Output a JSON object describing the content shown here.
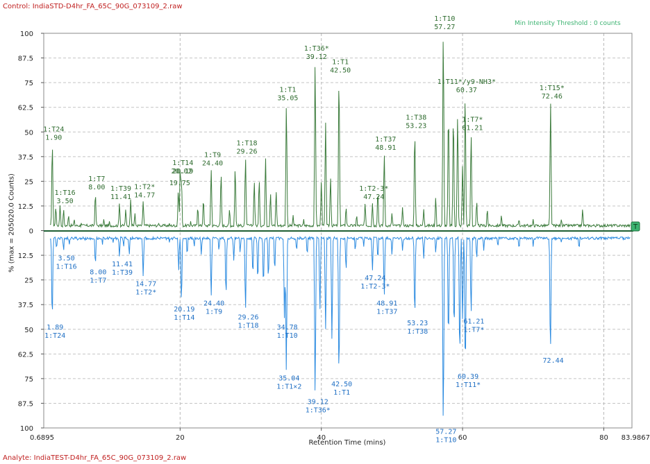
{
  "header": {
    "control_label": "Control: IndiaSTD-D4hr_FA_65C_90G_073109_2.raw",
    "analyte_label": "Analyte: IndiaTEST-D4hr_FA_65C_90G_073109_2.raw",
    "threshold_text": "Min Intensity Threshold : 0 counts",
    "marker_label": "T"
  },
  "colors": {
    "control_trace": "#3a7a3a",
    "control_text": "#2e6b2e",
    "analyte_trace": "#2a8ae0",
    "analyte_text": "#1f6fc4",
    "file_label": "#c02020",
    "threshold": "#3cb371",
    "marker": "#3cb371"
  },
  "chart_data": {
    "type": "line",
    "title": "",
    "xlabel": "Retention Time (mins)",
    "ylabel": "% (max = 205020.0 Counts)",
    "xlim": [
      0.6895,
      83.9867
    ],
    "x_tick_labels": [
      "0.6895",
      "20",
      "40",
      "60",
      "80",
      "83.9867"
    ],
    "x_ticks": [
      20,
      40,
      60,
      80
    ],
    "y_tick_labels": [
      "100",
      "87.5",
      "75",
      "62.5",
      "50",
      "37.5",
      "25",
      "12.5",
      "0",
      "12.5",
      "25",
      "37.5",
      "50",
      "62.5",
      "75",
      "87.5",
      "100"
    ],
    "ylim_top": [
      0,
      100
    ],
    "ylim_bottom": [
      0,
      100
    ],
    "grid": true,
    "series": [
      {
        "name": "Control",
        "orientation": "up",
        "baseline": 2,
        "peaks": [
          [
            1.9,
            44
          ],
          [
            2.4,
            12
          ],
          [
            3.0,
            13
          ],
          [
            3.5,
            11
          ],
          [
            4.2,
            8
          ],
          [
            5.0,
            6
          ],
          [
            6.0,
            4
          ],
          [
            8.0,
            19
          ],
          [
            9.2,
            6
          ],
          [
            10.0,
            5
          ],
          [
            11.41,
            14
          ],
          [
            12.3,
            11
          ],
          [
            13.0,
            16
          ],
          [
            13.6,
            9
          ],
          [
            14.77,
            15
          ],
          [
            17.0,
            4
          ],
          [
            18.5,
            4
          ],
          [
            19.75,
            21
          ],
          [
            20.02,
            34
          ],
          [
            20.19,
            27
          ],
          [
            21.5,
            5
          ],
          [
            22.5,
            12
          ],
          [
            23.3,
            16
          ],
          [
            24.4,
            31
          ],
          [
            25.8,
            29
          ],
          [
            27.0,
            11
          ],
          [
            27.8,
            32
          ],
          [
            29.26,
            37
          ],
          [
            30.5,
            25
          ],
          [
            31.2,
            26
          ],
          [
            32.1,
            37
          ],
          [
            32.8,
            19
          ],
          [
            33.6,
            20
          ],
          [
            35.05,
            64
          ],
          [
            36.0,
            8
          ],
          [
            37.5,
            6
          ],
          [
            39.12,
            85
          ],
          [
            40.0,
            25
          ],
          [
            40.6,
            55
          ],
          [
            41.3,
            27
          ],
          [
            42.5,
            78
          ],
          [
            43.5,
            12
          ],
          [
            45.0,
            8
          ],
          [
            46.2,
            14
          ],
          [
            47.24,
            14
          ],
          [
            48.0,
            20
          ],
          [
            48.91,
            39
          ],
          [
            50.0,
            9
          ],
          [
            51.5,
            12
          ],
          [
            53.23,
            50
          ],
          [
            54.5,
            11
          ],
          [
            56.2,
            17
          ],
          [
            57.27,
            100
          ],
          [
            58.0,
            60
          ],
          [
            58.7,
            58
          ],
          [
            59.3,
            58
          ],
          [
            60.0,
            33
          ],
          [
            60.37,
            68
          ],
          [
            61.21,
            49
          ],
          [
            62.0,
            15
          ],
          [
            63.5,
            11
          ],
          [
            65.5,
            8
          ],
          [
            68.0,
            6
          ],
          [
            70.0,
            6
          ],
          [
            72.46,
            65
          ],
          [
            74.0,
            6
          ],
          [
            77.0,
            11
          ]
        ],
        "labels": [
          {
            "id": "1:T24",
            "rt": "1.90",
            "x": 1.9,
            "level": 44
          },
          {
            "id": "1:T16",
            "rt": "3.50",
            "x": 3.5,
            "level": 12
          },
          {
            "id": "1:T7",
            "rt": "8.00",
            "x": 8.0,
            "level": 19
          },
          {
            "id": "1:T39",
            "rt": "11.41",
            "x": 11.41,
            "level": 14
          },
          {
            "id": "1:T2*",
            "rt": "14.77",
            "x": 14.77,
            "level": 15
          },
          {
            "id": "1:T14",
            "rt": "20.19",
            "x": 20.19,
            "level": 27
          },
          {
            "id": "",
            "rt": "20.02",
            "x": 20.02,
            "level": 27
          },
          {
            "id": "",
            "rt": "19.75",
            "x": 19.75,
            "level": 21
          },
          {
            "id": "1:T9",
            "rt": "24.40",
            "x": 24.4,
            "level": 31
          },
          {
            "id": "1:T18",
            "rt": "29.26",
            "x": 29.26,
            "level": 37
          },
          {
            "id": "1:T1",
            "rt": "35.05",
            "x": 35.05,
            "level": 64
          },
          {
            "id": "1:T36*",
            "rt": "39.12",
            "x": 39.12,
            "level": 85
          },
          {
            "id": "1:T1",
            "rt": "42.50",
            "x": 42.5,
            "level": 78
          },
          {
            "id": "1:T2-3*",
            "rt": "47.24",
            "x": 47.24,
            "level": 14
          },
          {
            "id": "1:T37",
            "rt": "48.91",
            "x": 48.91,
            "level": 39
          },
          {
            "id": "1:T38",
            "rt": "53.23",
            "x": 53.23,
            "level": 50
          },
          {
            "id": "1:T10",
            "rt": "57.27",
            "x": 57.27,
            "level": 100
          },
          {
            "id": "1:T11*/y9-NH3*",
            "rt": "60.37",
            "x": 60.37,
            "level": 68
          },
          {
            "id": "1:T7*",
            "rt": "61.21",
            "x": 61.21,
            "level": 49
          },
          {
            "id": "1:T15*",
            "rt": "72.46",
            "x": 72.46,
            "level": 65
          }
        ]
      },
      {
        "name": "Analyte",
        "orientation": "down",
        "baseline": 3,
        "peaks": [
          [
            1.89,
            45
          ],
          [
            2.5,
            9
          ],
          [
            3.5,
            10
          ],
          [
            4.3,
            7
          ],
          [
            5.5,
            5
          ],
          [
            6.5,
            5
          ],
          [
            8.0,
            17
          ],
          [
            9.0,
            7
          ],
          [
            10.5,
            6
          ],
          [
            11.41,
            13
          ],
          [
            12.0,
            8
          ],
          [
            12.8,
            12
          ],
          [
            14.77,
            23
          ],
          [
            16.5,
            4
          ],
          [
            18.5,
            6
          ],
          [
            19.8,
            20
          ],
          [
            20.19,
            36
          ],
          [
            21.0,
            12
          ],
          [
            22.0,
            8
          ],
          [
            23.0,
            12
          ],
          [
            24.4,
            33
          ],
          [
            25.5,
            10
          ],
          [
            26.5,
            33
          ],
          [
            27.6,
            15
          ],
          [
            28.5,
            11
          ],
          [
            29.26,
            40
          ],
          [
            30.3,
            22
          ],
          [
            31.0,
            25
          ],
          [
            31.8,
            27
          ],
          [
            32.5,
            24
          ],
          [
            33.4,
            20
          ],
          [
            34.78,
            45
          ],
          [
            35.04,
            71
          ],
          [
            36.5,
            10
          ],
          [
            38.0,
            12
          ],
          [
            39.12,
            83
          ],
          [
            39.8,
            40
          ],
          [
            40.6,
            50
          ],
          [
            41.5,
            55
          ],
          [
            42.5,
            74
          ],
          [
            43.5,
            20
          ],
          [
            44.8,
            10
          ],
          [
            46.0,
            8
          ],
          [
            47.24,
            20
          ],
          [
            48.0,
            14
          ],
          [
            48.91,
            33
          ],
          [
            50.0,
            12
          ],
          [
            51.5,
            10
          ],
          [
            53.23,
            43
          ],
          [
            54.5,
            14
          ],
          [
            56.2,
            11
          ],
          [
            57.27,
            98
          ],
          [
            58.0,
            55
          ],
          [
            58.8,
            50
          ],
          [
            59.6,
            64
          ],
          [
            60.0,
            45
          ],
          [
            60.39,
            70
          ],
          [
            61.21,
            42
          ],
          [
            62.0,
            14
          ],
          [
            63.0,
            10
          ],
          [
            65.0,
            8
          ],
          [
            68.0,
            9
          ],
          [
            70.0,
            8
          ],
          [
            72.44,
            62
          ],
          [
            74.0,
            6
          ],
          [
            76.5,
            9
          ]
        ],
        "labels": [
          {
            "id": "1:T24",
            "rt": "1.89",
            "x": 1.89,
            "level": 45
          },
          {
            "id": "1:T16",
            "rt": "3.50",
            "x": 3.5,
            "level": 10
          },
          {
            "id": "1:T7",
            "rt": "8.00",
            "x": 8.0,
            "level": 17
          },
          {
            "id": "1:T39",
            "rt": "11.41",
            "x": 11.41,
            "level": 13
          },
          {
            "id": "1:T2*",
            "rt": "14.77",
            "x": 14.77,
            "level": 23
          },
          {
            "id": "1:T14",
            "rt": "20.19",
            "x": 20.19,
            "level": 36
          },
          {
            "id": "1:T9",
            "rt": "24.40",
            "x": 24.4,
            "level": 33
          },
          {
            "id": "1:T18",
            "rt": "29.26",
            "x": 29.26,
            "level": 40
          },
          {
            "id": "1:T10",
            "rt": "34.78",
            "x": 34.78,
            "level": 45
          },
          {
            "id": "1:T1×2",
            "rt": "35.04",
            "x": 35.04,
            "level": 71
          },
          {
            "id": "1:T36*",
            "rt": "39.12",
            "x": 39.12,
            "level": 83
          },
          {
            "id": "1:T1",
            "rt": "42.50",
            "x": 42.5,
            "level": 74
          },
          {
            "id": "1:T2-3*",
            "rt": "47.24",
            "x": 47.24,
            "level": 20
          },
          {
            "id": "1:T37",
            "rt": "48.91",
            "x": 48.91,
            "level": 33
          },
          {
            "id": "1:T38",
            "rt": "53.23",
            "x": 53.23,
            "level": 43
          },
          {
            "id": "1:T10",
            "rt": "57.27",
            "x": 57.27,
            "level": 98
          },
          {
            "id": "1:T11*",
            "rt": "60.39",
            "x": 60.39,
            "level": 70
          },
          {
            "id": "1:T7*",
            "rt": "61.21",
            "x": 61.21,
            "level": 42
          },
          {
            "id": "",
            "rt": "72.44",
            "x": 72.44,
            "level": 62
          }
        ]
      }
    ]
  }
}
